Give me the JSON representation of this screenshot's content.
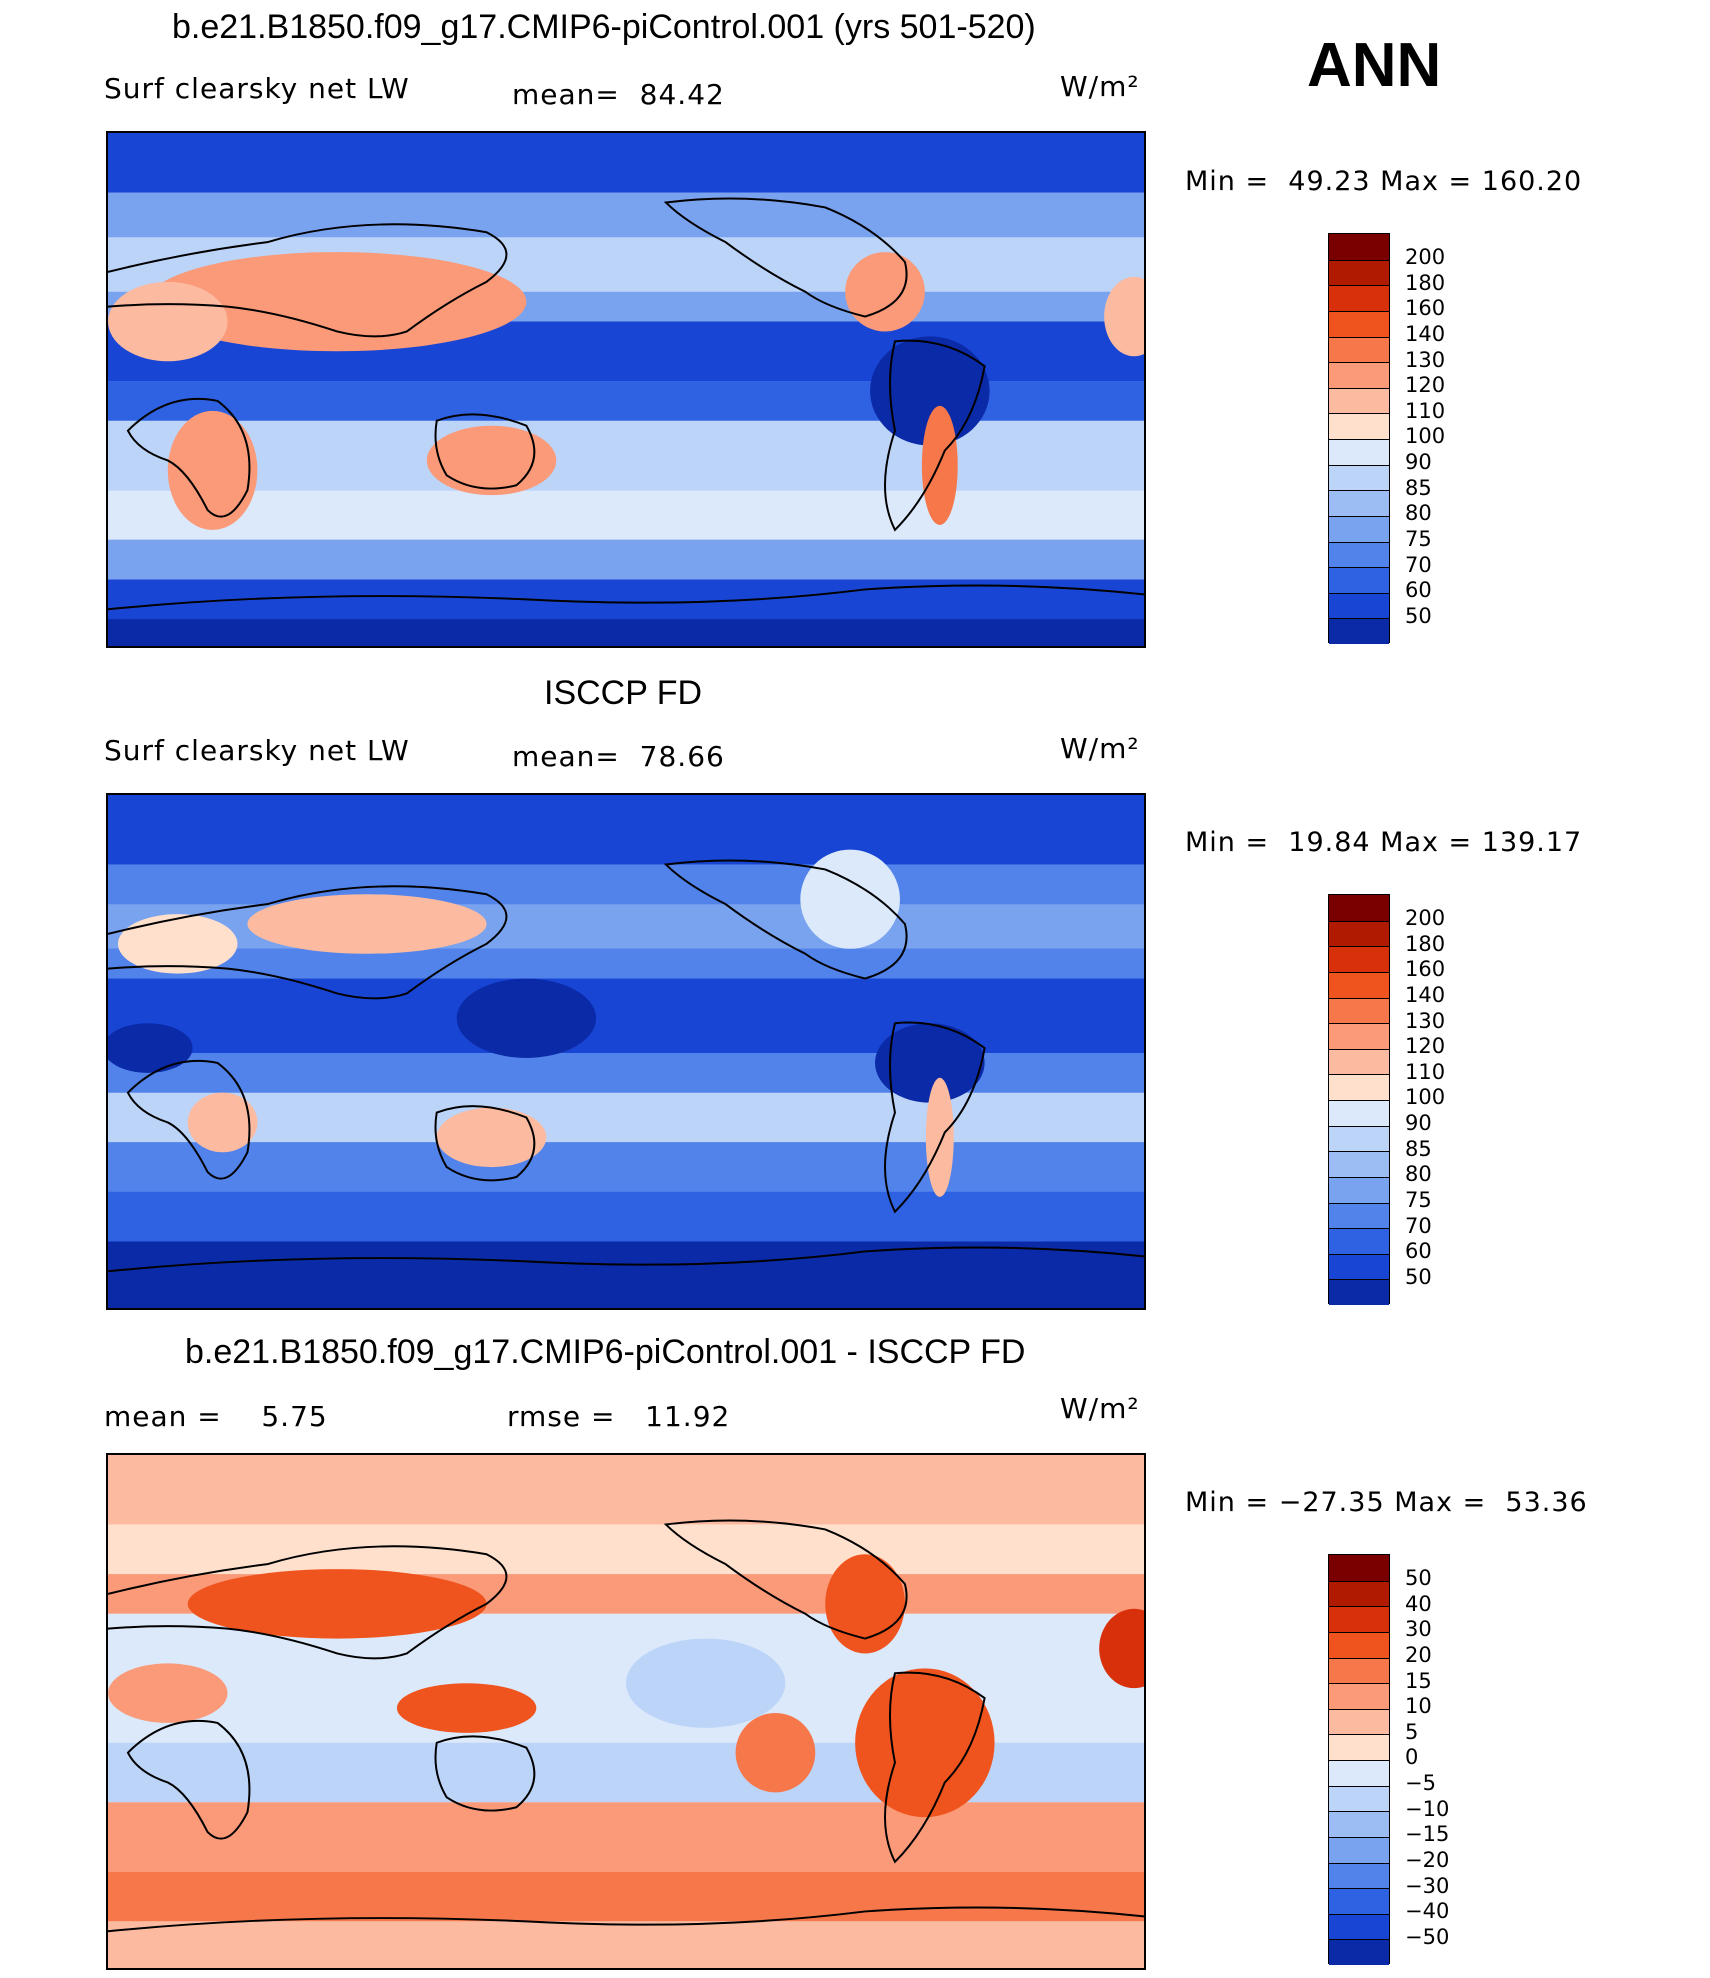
{
  "header": {
    "case_title": "b.e21.B1850.f09_g17.CMIP6-piControl.001 (yrs 501-520)",
    "season": "ANN"
  },
  "panels": [
    {
      "title": "",
      "variable": "Surf clearsky net LW",
      "stat_left": "",
      "stat": "mean=  84.42",
      "units": "W/m²",
      "minmax": "Min =  49.23 Max = 160.20",
      "palette": "model"
    },
    {
      "title": "ISCCP FD",
      "variable": "Surf clearsky net LW",
      "stat_left": "",
      "stat": "mean=  78.66",
      "units": "W/m²",
      "minmax": "Min =  19.84 Max = 139.17",
      "palette": "obs"
    },
    {
      "title": "b.e21.B1850.f09_g17.CMIP6-piControl.001 - ISCCP FD",
      "variable": "",
      "stat_left": "mean =    5.75",
      "stat": "rmse =   11.92",
      "units": "W/m²",
      "minmax": "Min = −27.35 Max =  53.36",
      "palette": "diff"
    }
  ],
  "colorbar_abs": {
    "labels": [
      "200",
      "180",
      "160",
      "140",
      "130",
      "120",
      "110",
      "100",
      "90",
      "85",
      "80",
      "75",
      "70",
      "60",
      "50"
    ],
    "colors": [
      "#7a0000",
      "#b01a00",
      "#d8300a",
      "#f0541e",
      "#f6774a",
      "#fa9a78",
      "#fcbba0",
      "#fee0cc",
      "#dbe9fb",
      "#bcd4f8",
      "#9cbcf4",
      "#7aa3ef",
      "#5283ea",
      "#2f62e2",
      "#1945d4",
      "#0a2aa8"
    ]
  },
  "colorbar_diff": {
    "labels": [
      "50",
      "40",
      "30",
      "20",
      "15",
      "10",
      "5",
      "0",
      "−5",
      "−10",
      "−15",
      "−20",
      "−30",
      "−40",
      "−50"
    ],
    "colors": [
      "#7a0000",
      "#b01a00",
      "#d8300a",
      "#f0541e",
      "#f6774a",
      "#fa9a78",
      "#fcbba0",
      "#fee0cc",
      "#dbe9fb",
      "#bcd4f8",
      "#9cbcf4",
      "#7aa3ef",
      "#5283ea",
      "#2f62e2",
      "#1945d4",
      "#0a2aa8"
    ]
  }
}
